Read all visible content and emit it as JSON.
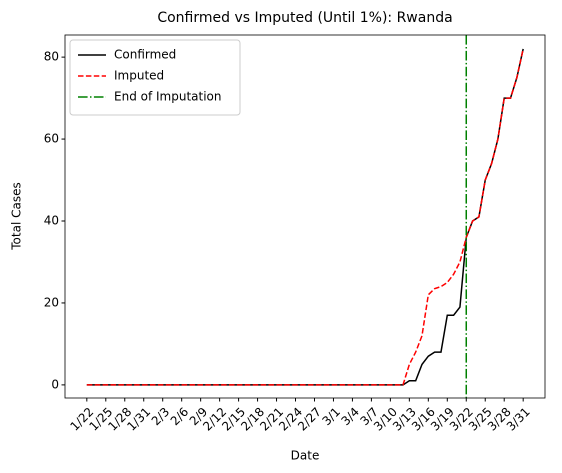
{
  "chart_data": {
    "type": "line",
    "title": "Confirmed vs Imputed (Until 1%): Rwanda",
    "x_label": "Date",
    "y_label": "Total Cases",
    "categories": [
      "1/22",
      null,
      null,
      "1/25",
      null,
      null,
      "1/28",
      null,
      null,
      "1/31",
      null,
      null,
      "2/3",
      null,
      null,
      "2/6",
      null,
      null,
      "2/9",
      null,
      null,
      "2/12",
      null,
      null,
      "2/15",
      null,
      null,
      "2/18",
      null,
      null,
      "2/21",
      null,
      null,
      "2/24",
      null,
      null,
      "2/27",
      null,
      null,
      "3/1",
      null,
      null,
      "3/4",
      null,
      null,
      "3/7",
      null,
      null,
      "3/10",
      null,
      null,
      "3/13",
      null,
      null,
      "3/16",
      null,
      null,
      "3/19",
      null,
      null,
      "3/22",
      null,
      null,
      "3/25",
      null,
      null,
      "3/28",
      null,
      null,
      "3/31"
    ],
    "series": [
      {
        "name": "Confirmed",
        "color": "#000000",
        "style": "solid",
        "values": [
          0,
          0,
          0,
          0,
          0,
          0,
          0,
          0,
          0,
          0,
          0,
          0,
          0,
          0,
          0,
          0,
          0,
          0,
          0,
          0,
          0,
          0,
          0,
          0,
          0,
          0,
          0,
          0,
          0,
          0,
          0,
          0,
          0,
          0,
          0,
          0,
          0,
          0,
          0,
          0,
          0,
          0,
          0,
          0,
          0,
          0,
          0,
          0,
          0,
          0,
          0,
          1,
          1,
          5,
          7,
          8,
          8,
          17,
          17,
          19,
          36,
          40,
          41,
          50,
          54,
          60,
          70,
          70,
          75,
          82
        ]
      },
      {
        "name": "Imputed",
        "color": "#ff0000",
        "style": "dashed",
        "values": [
          0,
          0,
          0,
          0,
          0,
          0,
          0,
          0,
          0,
          0,
          0,
          0,
          0,
          0,
          0,
          0,
          0,
          0,
          0,
          0,
          0,
          0,
          0,
          0,
          0,
          0,
          0,
          0,
          0,
          0,
          0,
          0,
          0,
          0,
          0,
          0,
          0,
          0,
          0,
          0,
          0,
          0,
          0,
          0,
          0,
          0,
          0,
          0,
          0,
          0,
          0,
          5,
          8,
          12,
          22,
          23.5,
          24,
          25,
          27,
          30,
          36,
          40,
          41,
          50,
          54,
          60,
          70,
          70,
          75,
          82
        ]
      },
      {
        "name": "End of Imputation",
        "color": "#008000",
        "style": "dashdot",
        "vline_at": "3/22"
      }
    ],
    "ylim": [
      -3.2,
      85.4
    ],
    "yticks": [
      0,
      20,
      40,
      60,
      80
    ],
    "legend": "upper left"
  }
}
